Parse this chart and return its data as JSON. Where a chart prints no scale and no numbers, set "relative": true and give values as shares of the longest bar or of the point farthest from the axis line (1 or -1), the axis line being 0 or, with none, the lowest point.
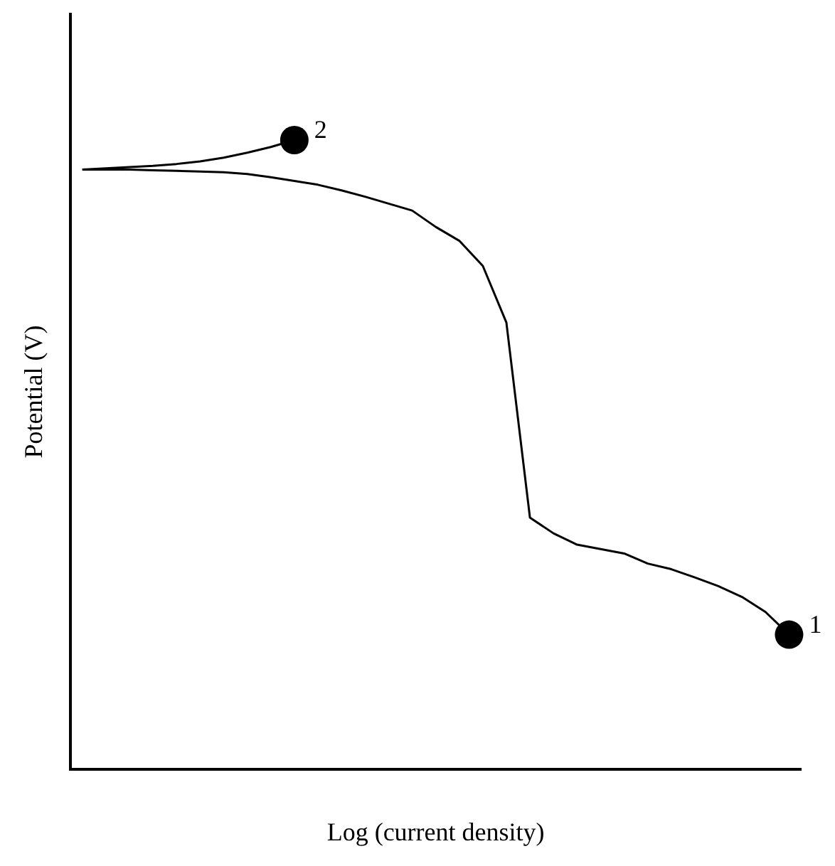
{
  "chart_data": {
    "type": "line",
    "relative": true,
    "xlabel": "Log (current density)",
    "ylabel": "Potential (V)",
    "grid": false,
    "legend": false,
    "categories": [
      null,
      null,
      null,
      null,
      null,
      null,
      null,
      null,
      null,
      null,
      null,
      null,
      null,
      null,
      null,
      null,
      null,
      null,
      null,
      null,
      null,
      null,
      null,
      null,
      null,
      null,
      null,
      null,
      null,
      null,
      null
    ],
    "series": [
      {
        "name": "1",
        "color": "#000000",
        "values": [
          0.953,
          0.953,
          0.953,
          0.952,
          0.951,
          0.95,
          0.949,
          0.946,
          0.941,
          0.935,
          0.929,
          0.92,
          0.91,
          0.899,
          0.888,
          0.862,
          0.84,
          0.8,
          0.71,
          0.4,
          0.375,
          0.357,
          0.35,
          0.343,
          0.327,
          0.318,
          0.305,
          0.291,
          0.274,
          0.25,
          0.214
        ]
      },
      {
        "name": "2",
        "color": "#000000",
        "values": [
          0.953,
          0.955,
          0.957,
          0.959,
          0.962,
          0.966,
          0.972,
          0.98,
          0.989,
          1,
          null,
          null,
          null,
          null,
          null,
          null,
          null,
          null,
          null,
          null,
          null,
          null,
          null,
          null,
          null,
          null,
          null,
          null,
          null,
          null,
          null
        ]
      }
    ]
  }
}
